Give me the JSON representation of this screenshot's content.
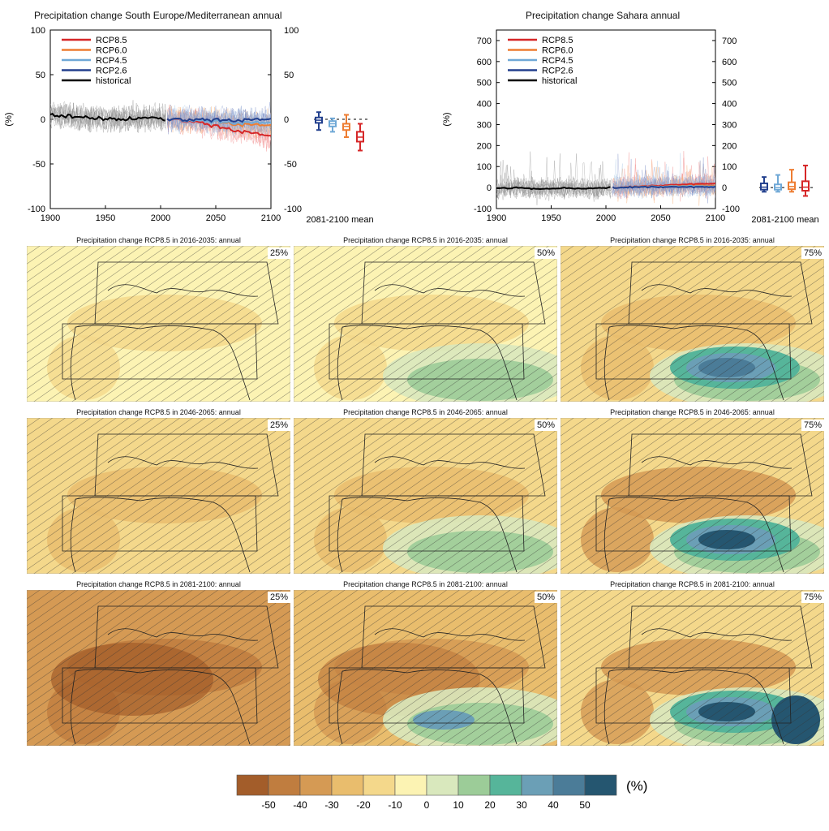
{
  "timeseries": [
    {
      "title": "Precipitation change South Europe/Mediterranean annual",
      "ylabel": "(%)",
      "ylim": [
        -100,
        100
      ],
      "yticks": [
        "100",
        "50",
        "0",
        "-50",
        "-100"
      ],
      "xticks": [
        "1900",
        "1950",
        "2000",
        "2050",
        "2100"
      ],
      "boxlabel": "2081-2100 mean"
    },
    {
      "title": "Precipitation change Sahara annual",
      "ylabel": "(%)",
      "ylim": [
        -100,
        750
      ],
      "yticks": [
        "700",
        "600",
        "500",
        "400",
        "300",
        "200",
        "100",
        "0",
        "-100"
      ],
      "xticks": [
        "1900",
        "1950",
        "2000",
        "2050",
        "2100"
      ],
      "boxlabel": "2081-2100 mean"
    }
  ],
  "legend": [
    "RCP8.5",
    "RCP6.0",
    "RCP4.5",
    "RCP2.6",
    "historical"
  ],
  "colors": {
    "rcp85": "#d62728",
    "rcp60": "#ee7d32",
    "rcp45": "#6fa8d6",
    "rcp26": "#23408e",
    "historical": "#000000"
  },
  "maps": {
    "rows": [
      "Precipitation change RCP8.5 in 2016-2035: annual",
      "Precipitation change RCP8.5 in 2046-2065: annual",
      "Precipitation change RCP8.5 in 2081-2100: annual"
    ],
    "percentiles": [
      "25%",
      "50%",
      "75%"
    ]
  },
  "colorbar": {
    "unit": "(%)",
    "labels": [
      "-50",
      "-40",
      "-30",
      "-20",
      "-10",
      "0",
      "10",
      "20",
      "30",
      "40",
      "50"
    ],
    "colors": [
      "#a35d2a",
      "#c07d3f",
      "#d59a54",
      "#e9bd6d",
      "#f4d88b",
      "#fcf3b3",
      "#d9e8bd",
      "#9ccc98",
      "#56b59a",
      "#6b9fb6",
      "#4b7c98",
      "#255670"
    ]
  },
  "chart_data": [
    {
      "type": "line",
      "title": "Precipitation change South Europe/Mediterranean annual",
      "xlabel": "",
      "ylabel": "(%)",
      "xlim": [
        1900,
        2100
      ],
      "ylim": [
        -100,
        100
      ],
      "series": [
        {
          "name": "historical",
          "x": [
            1900,
            1920,
            1940,
            1960,
            1980,
            2005
          ],
          "y": [
            5,
            3,
            1,
            0,
            1,
            0
          ]
        },
        {
          "name": "RCP2.6",
          "x": [
            2006,
            2030,
            2050,
            2075,
            2100
          ],
          "y": [
            0,
            -1,
            -1,
            -1,
            -1
          ]
        },
        {
          "name": "RCP4.5",
          "x": [
            2006,
            2030,
            2050,
            2075,
            2100
          ],
          "y": [
            0,
            -2,
            -3,
            -4,
            -5
          ]
        },
        {
          "name": "RCP6.0",
          "x": [
            2006,
            2030,
            2050,
            2075,
            2100
          ],
          "y": [
            0,
            -1,
            -3,
            -6,
            -8
          ]
        },
        {
          "name": "RCP8.5",
          "x": [
            2006,
            2030,
            2050,
            2075,
            2100
          ],
          "y": [
            0,
            -3,
            -8,
            -14,
            -20
          ]
        }
      ],
      "boxplots": [
        {
          "name": "RCP2.6",
          "min": -12,
          "q1": -4,
          "median": -1,
          "q3": 2,
          "max": 8
        },
        {
          "name": "RCP4.5",
          "min": -14,
          "q1": -8,
          "median": -5,
          "q3": -2,
          "max": 1
        },
        {
          "name": "RCP6.0",
          "min": -20,
          "q1": -12,
          "median": -8,
          "q3": -5,
          "max": 5
        },
        {
          "name": "RCP8.5",
          "min": -35,
          "q1": -25,
          "median": -20,
          "q3": -14,
          "max": -5
        }
      ],
      "legend_position": "top-left"
    },
    {
      "type": "line",
      "title": "Precipitation change Sahara annual",
      "xlabel": "",
      "ylabel": "(%)",
      "xlim": [
        1900,
        2100
      ],
      "ylim": [
        -100,
        750
      ],
      "series": [
        {
          "name": "historical",
          "x": [
            1900,
            1920,
            1940,
            1960,
            1980,
            2005
          ],
          "y": [
            -5,
            0,
            -8,
            -2,
            -5,
            0
          ]
        },
        {
          "name": "RCP2.6",
          "x": [
            2006,
            2030,
            2050,
            2075,
            2100
          ],
          "y": [
            0,
            2,
            3,
            2,
            3
          ]
        },
        {
          "name": "RCP4.5",
          "x": [
            2006,
            2030,
            2050,
            2075,
            2100
          ],
          "y": [
            0,
            3,
            5,
            6,
            6
          ]
        },
        {
          "name": "RCP6.0",
          "x": [
            2006,
            2030,
            2050,
            2075,
            2100
          ],
          "y": [
            0,
            4,
            6,
            8,
            10
          ]
        },
        {
          "name": "RCP8.5",
          "x": [
            2006,
            2030,
            2050,
            2075,
            2100
          ],
          "y": [
            0,
            5,
            10,
            15,
            20
          ]
        }
      ],
      "boxplots": [
        {
          "name": "RCP2.6",
          "min": -20,
          "q1": -10,
          "median": 2,
          "q3": 20,
          "max": 50
        },
        {
          "name": "RCP4.5",
          "min": -20,
          "q1": -10,
          "median": 0,
          "q3": 15,
          "max": 60
        },
        {
          "name": "RCP6.0",
          "min": -20,
          "q1": -8,
          "median": 5,
          "q3": 25,
          "max": 85
        },
        {
          "name": "RCP8.5",
          "min": -40,
          "q1": -15,
          "median": 2,
          "q3": 30,
          "max": 105
        }
      ],
      "legend_position": "top-left"
    }
  ]
}
